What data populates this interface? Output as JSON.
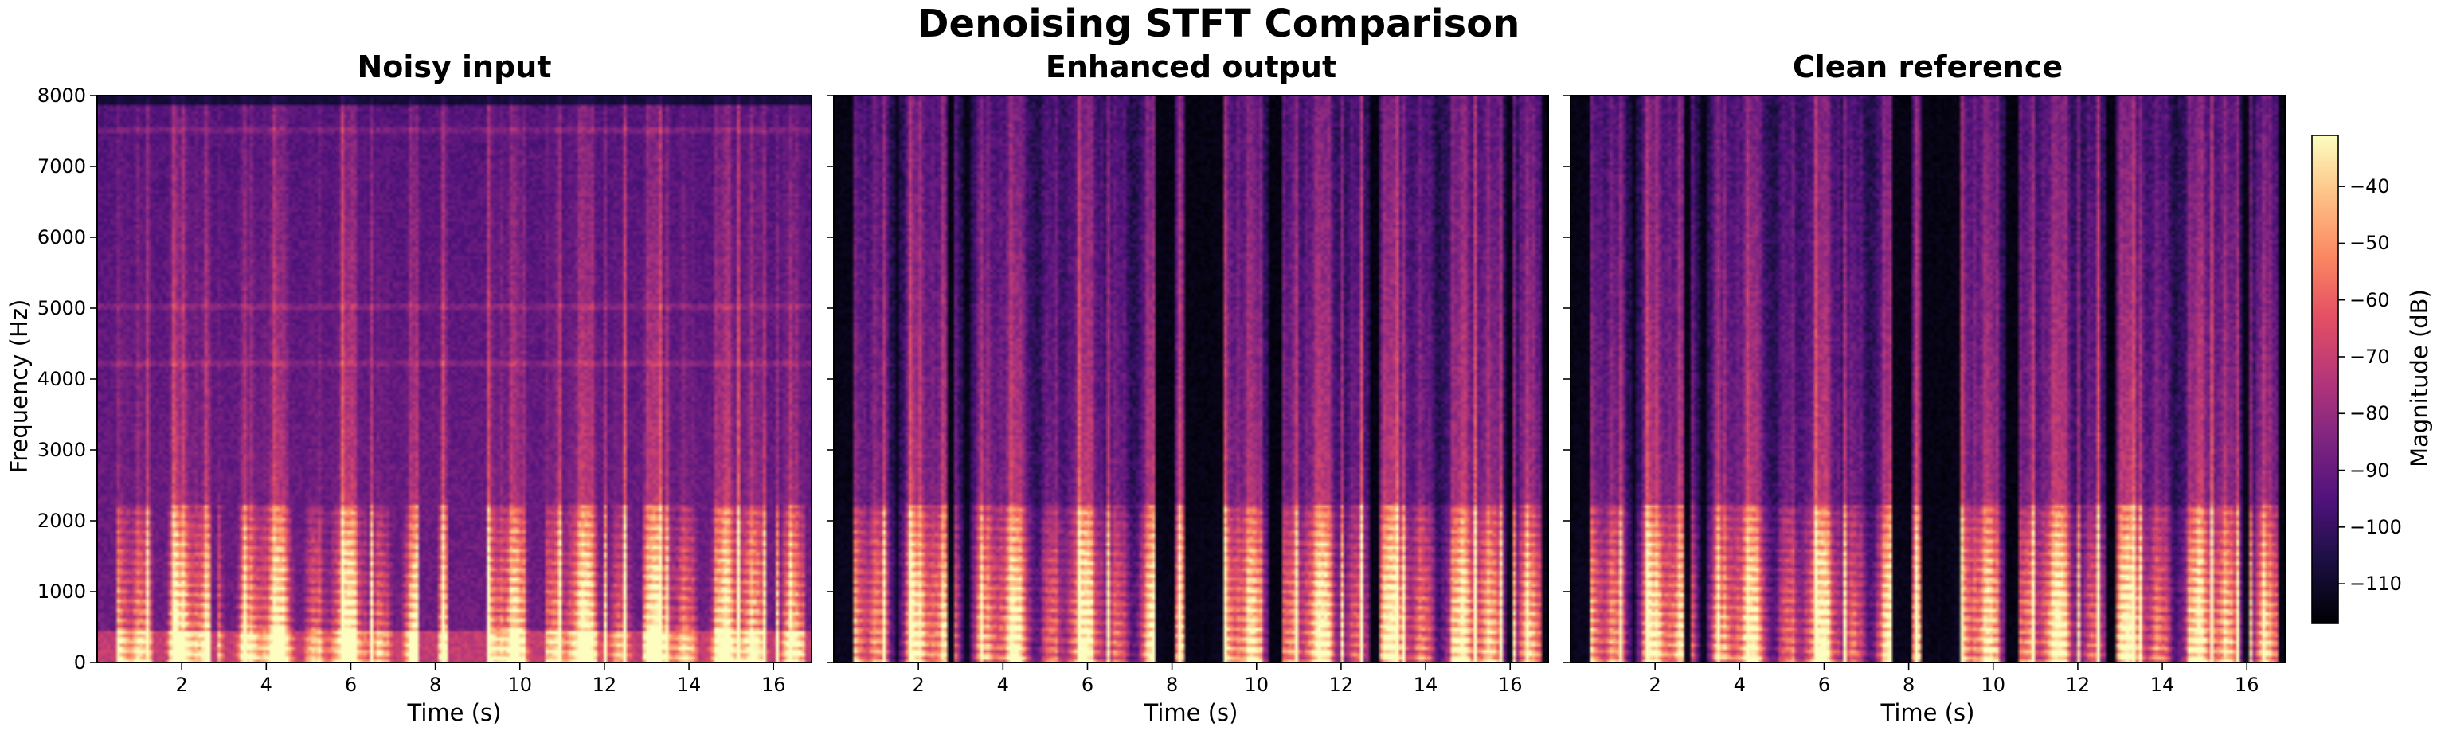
{
  "title": "Denoising STFT Comparison",
  "chart_data": {
    "type": "heatmap",
    "colormap": "magma",
    "shared_y": true,
    "ylabel": "Frequency (Hz)",
    "ylim": [
      0,
      8000
    ],
    "yticks": [
      0,
      1000,
      2000,
      3000,
      4000,
      5000,
      6000,
      7000,
      8000
    ],
    "xlabel": "Time (s)",
    "xlim": [
      0,
      16.9
    ],
    "xticks": [
      2,
      4,
      6,
      8,
      10,
      12,
      14,
      16
    ],
    "colorbar": {
      "label": "Magnitude (dB)",
      "range": [
        -117,
        -31
      ],
      "ticks": [
        -40,
        -50,
        -60,
        -70,
        -80,
        -90,
        -100,
        -110
      ]
    },
    "panels": [
      {
        "title": "Noisy input",
        "noise": true
      },
      {
        "title": "Enhanced output",
        "noise": false
      },
      {
        "title": "Clean reference",
        "noise": false
      }
    ]
  }
}
